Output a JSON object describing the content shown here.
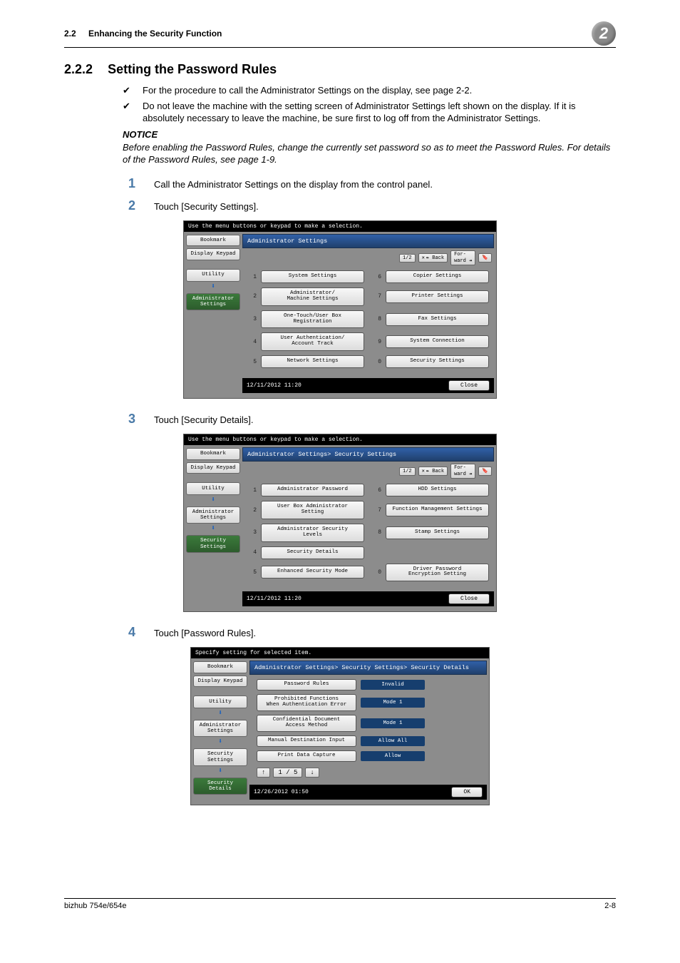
{
  "header": {
    "section_number": "2.2",
    "section_title": "Enhancing the Security Function",
    "chapter_badge": "2"
  },
  "section": {
    "number": "2.2.2",
    "title": "Setting the Password Rules"
  },
  "bullets": [
    "For the procedure to call the Administrator Settings on the display, see page 2-2.",
    "Do not leave the machine with the setting screen of Administrator Settings left shown on the display. If it is absolutely necessary to leave the machine, be sure first to log off from the Administrator Settings."
  ],
  "notice": {
    "label": "NOTICE",
    "text": "Before enabling the Password Rules, change the currently set password so as to meet the Password Rules. For details of the Password Rules, see page 1-9."
  },
  "steps": [
    {
      "num": "1",
      "text": "Call the Administrator Settings on the display from the control panel."
    },
    {
      "num": "2",
      "text": "Touch [Security Settings]."
    },
    {
      "num": "3",
      "text": "Touch [Security Details]."
    },
    {
      "num": "4",
      "text": "Touch [Password Rules]."
    }
  ],
  "panel_common": {
    "side": {
      "bookmark": "Bookmark",
      "display_keypad": "Display Keypad",
      "utility": "Utility",
      "admin": "Administrator\nSettings",
      "security": "Security\nSettings",
      "security_details": "Security Details"
    },
    "close": "Close",
    "ok": "OK"
  },
  "panel1": {
    "topmsg": "Use the menu buttons or keypad to make a selection.",
    "title": "Administrator Settings",
    "page": "1/2",
    "back": "↞ Back",
    "fwd": "For-\nward ↠",
    "timestamp": "12/11/2012   11:20",
    "items_left": [
      {
        "n": "1",
        "t": "System Settings"
      },
      {
        "n": "2",
        "t": "Administrator/\nMachine Settings"
      },
      {
        "n": "3",
        "t": "One-Touch/User Box\nRegistration"
      },
      {
        "n": "4",
        "t": "User Authentication/\nAccount Track"
      },
      {
        "n": "5",
        "t": "Network Settings"
      }
    ],
    "items_right": [
      {
        "n": "6",
        "t": "Copier Settings"
      },
      {
        "n": "7",
        "t": "Printer Settings"
      },
      {
        "n": "8",
        "t": "Fax Settings"
      },
      {
        "n": "9",
        "t": "System Connection"
      },
      {
        "n": "0",
        "t": "Security Settings"
      }
    ]
  },
  "panel2": {
    "topmsg": "Use the menu buttons or keypad to make a selection.",
    "title": "Administrator Settings> Security Settings",
    "page": "1/2",
    "timestamp": "12/11/2012   11:20",
    "items_left": [
      {
        "n": "1",
        "t": "Administrator Password"
      },
      {
        "n": "2",
        "t": "User Box Administrator\nSetting"
      },
      {
        "n": "3",
        "t": "Administrator Security\nLevels"
      },
      {
        "n": "4",
        "t": "Security Details"
      },
      {
        "n": "5",
        "t": "Enhanced Security Mode"
      }
    ],
    "items_right": [
      {
        "n": "6",
        "t": "HDD Settings"
      },
      {
        "n": "7",
        "t": "Function Management Settings"
      },
      {
        "n": "8",
        "t": "Stamp Settings"
      },
      {
        "n": "",
        "t": ""
      },
      {
        "n": "0",
        "t": "Driver Password\nEncryption Setting"
      }
    ]
  },
  "panel3": {
    "topmsg": "Specify setting for selected item.",
    "title": "Administrator Settings> Security Settings> Security Details",
    "timestamp": "12/26/2012   01:50",
    "pager": "1 / 5",
    "rows": [
      {
        "label": "Password Rules",
        "value": "Invalid"
      },
      {
        "label": "Prohibited Functions\nWhen Authentication Error",
        "value": "Mode 1"
      },
      {
        "label": "Confidential Document\nAccess Method",
        "value": "Mode 1"
      },
      {
        "label": "Manual Destination Input",
        "value": "Allow All"
      },
      {
        "label": "Print Data Capture",
        "value": "Allow"
      }
    ]
  },
  "footer": {
    "left": "bizhub 754e/654e",
    "right": "2-8"
  },
  "colors": {
    "accent_blue": "#4a7aa8",
    "panel_bg": "#8c8c8c",
    "titlebar_top": "#3060a8",
    "titlebar_bottom": "#20406c"
  }
}
